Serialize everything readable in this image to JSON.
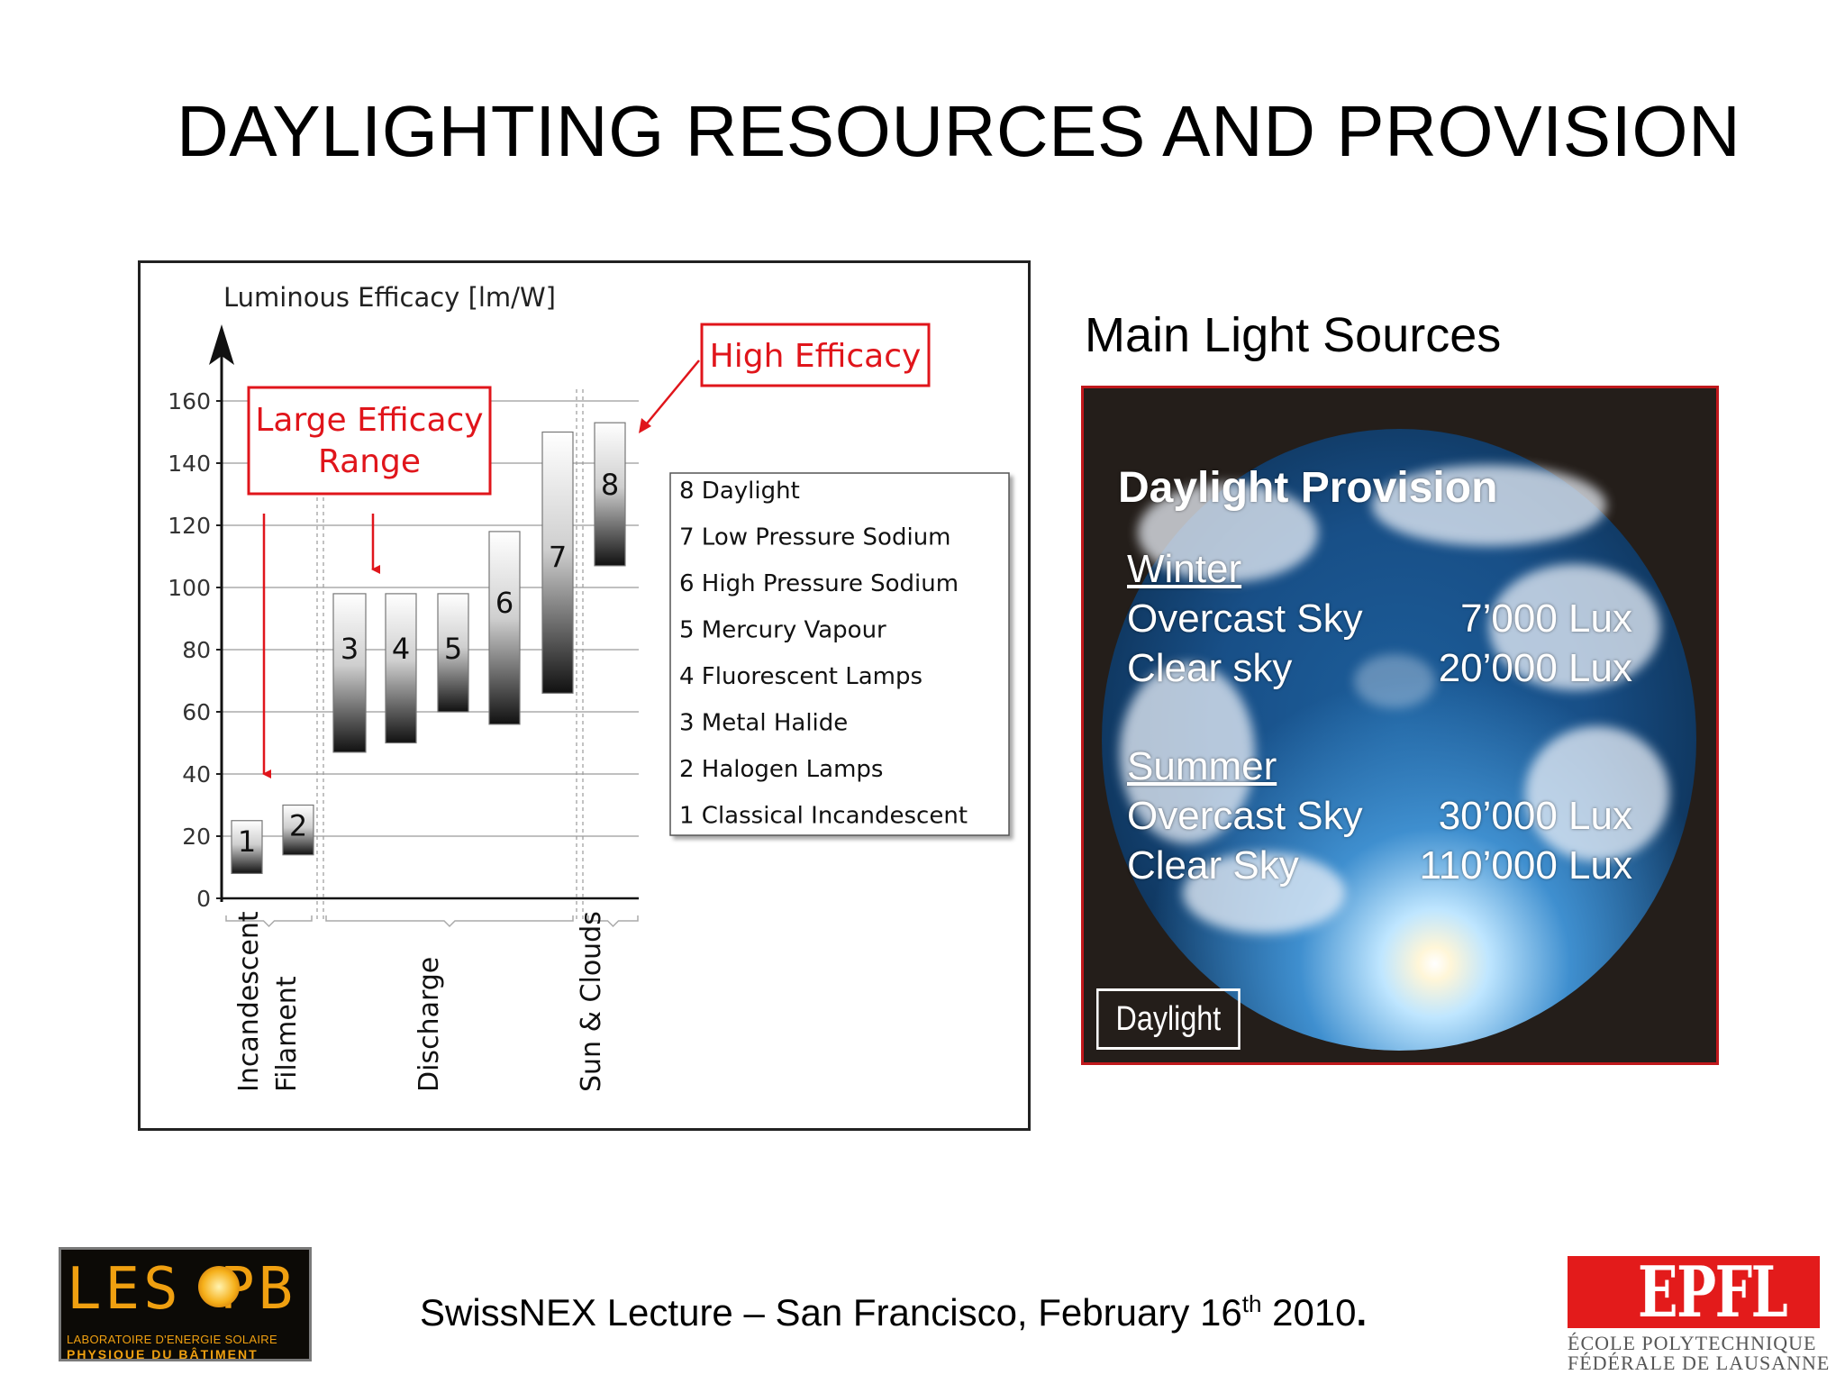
{
  "slide": {
    "title": "DAYLIGHTING RESOURCES AND PROVISION",
    "footer_main": "SwissNEX Lecture – San Francisco, February 16",
    "footer_sup": "th",
    "footer_year": " 2010",
    "footer_end": "."
  },
  "chart_data": {
    "type": "bar",
    "ylabel": "Luminous Efficacy  [lm/W]",
    "ylim": [
      0,
      160
    ],
    "yticks": [
      0,
      20,
      40,
      60,
      80,
      100,
      120,
      140,
      160
    ],
    "grid": true,
    "series": [
      {
        "label": "1",
        "low": 8,
        "high": 25
      },
      {
        "label": "2",
        "low": 14,
        "high": 30
      },
      {
        "label": "3",
        "low": 47,
        "high": 98
      },
      {
        "label": "4",
        "low": 50,
        "high": 98
      },
      {
        "label": "5",
        "low": 60,
        "high": 98
      },
      {
        "label": "6",
        "low": 56,
        "high": 118
      },
      {
        "label": "7",
        "low": 66,
        "high": 150
      },
      {
        "label": "8",
        "low": 107,
        "high": 153
      }
    ],
    "groups": [
      "Incandescent Filament",
      "Discharge",
      "Sun & Clouds"
    ],
    "legend": [
      "8  Daylight",
      "7  Low Pressure Sodium",
      "6  High Pressure Sodium",
      "5  Mercury Vapour",
      "4  Fluorescent Lamps",
      "3  Metal Halide",
      "2  Halogen Lamps",
      "1  Classical Incandescent"
    ],
    "annotations": {
      "large_range": [
        "Large Efficacy",
        "Range"
      ],
      "high_efficacy": "High Efficacy"
    },
    "accent_color": "#e0151b"
  },
  "daylight": {
    "heading": "Main Light Sources",
    "title": "Daylight Provision",
    "winter": {
      "label": "Winter",
      "rows": [
        {
          "label": "Overcast Sky",
          "value": "7’000 Lux"
        },
        {
          "label": "Clear sky",
          "value": "20’000 Lux"
        }
      ]
    },
    "summer": {
      "label": "Summer",
      "rows": [
        {
          "label": "Overcast Sky",
          "value": "30’000 Lux"
        },
        {
          "label": "Clear Sky",
          "value": "110’000 Lux"
        }
      ]
    },
    "badge": "Daylight"
  },
  "logos": {
    "leso_word": "LES PB",
    "leso_line1": "LABORATOIRE D'ENERGIE SOLAIRE",
    "leso_line2": "PHYSIQUE DU BÂTIMENT",
    "epfl_word": "EPFL",
    "epfl_line1": "ÉCOLE POLYTECHNIQUE",
    "epfl_line2": "FÉDÉRALE DE LAUSANNE"
  }
}
